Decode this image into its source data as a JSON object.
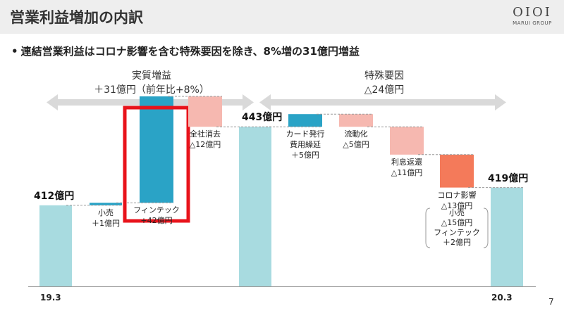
{
  "page": {
    "title": "営業利益増加の内訳",
    "logo_mark": "OIOI",
    "logo_text": "MARUI GROUP",
    "bullet": "連結営業利益はコロナ影響を含む特殊要因を除き、8%増の31億円増益",
    "section_left": {
      "line1": "実質増益",
      "line2": "＋31億円（前年比+8%）"
    },
    "section_right": {
      "line1": "特殊要因",
      "line2": "△24億円"
    },
    "page_number": "7"
  },
  "chart_data": {
    "type": "waterfall",
    "ylim": [
      380,
      450
    ],
    "steps": [
      {
        "key": "start",
        "kind": "total",
        "value": 412,
        "color": "#a8dbe0",
        "label_lines": [
          "412億円"
        ]
      },
      {
        "key": "small_retail",
        "kind": "delta",
        "value": 1,
        "color": "#2aa3c6",
        "label_lines": [
          "小売",
          "＋1億円"
        ]
      },
      {
        "key": "fintech",
        "kind": "delta",
        "value": 42,
        "color": "#2aa3c6",
        "label_lines": [
          "フィンテック",
          "+42億円"
        ],
        "highlight": true,
        "highlight_color": "#e8131b"
      },
      {
        "key": "corporate",
        "kind": "delta",
        "value": -12,
        "color": "#f6b8b0",
        "label_lines": [
          "全社消去",
          "△12億円"
        ]
      },
      {
        "key": "mid",
        "kind": "total",
        "value": 443,
        "color": "#a8dbe0",
        "label_lines": [
          "443億円"
        ]
      },
      {
        "key": "card_fees",
        "kind": "delta",
        "value": 5,
        "color": "#2aa3c6",
        "label_lines": [
          "カード発行",
          "費用繰延",
          "＋5億円"
        ]
      },
      {
        "key": "securitization",
        "kind": "delta",
        "value": -5,
        "color": "#f6b8b0",
        "label_lines": [
          "流動化",
          "△5億円"
        ]
      },
      {
        "key": "interest",
        "kind": "delta",
        "value": -11,
        "color": "#f6b8b0",
        "label_lines": [
          "利息返還",
          "△11億円"
        ]
      },
      {
        "key": "corona",
        "kind": "delta",
        "value": -13,
        "color": "#f47a5a",
        "label_lines": [
          "コロナ影響",
          "△13億円"
        ],
        "sub_lines": [
          "小売",
          "△15億円",
          "フィンテック",
          "＋2億円"
        ]
      },
      {
        "key": "end",
        "kind": "total",
        "value": 419,
        "color": "#a8dbe0",
        "label_lines": [
          "419億円"
        ]
      }
    ],
    "x_tick_labels": [
      "19.3",
      "20.3"
    ]
  }
}
